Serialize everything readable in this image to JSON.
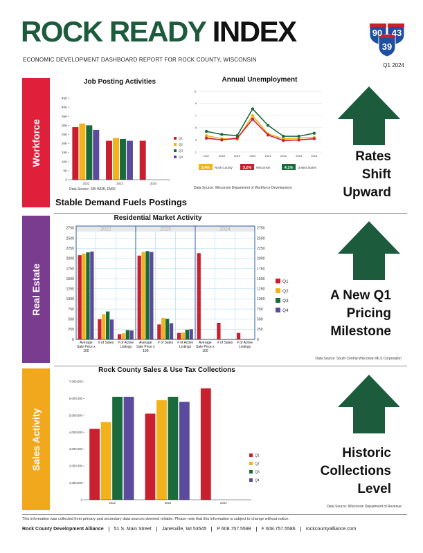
{
  "header": {
    "title_1": "ROCK READY",
    "title_2": "INDEX",
    "subtitle": "ECONOMIC DEVELOPMENT DASHBOARD REPORT FOR ROCK COUNTY, WISCONSIN",
    "period": "Q1 2024",
    "shields": [
      "90",
      "43",
      "39"
    ]
  },
  "sections": [
    {
      "label": "Workforce",
      "headline": [
        "Rates",
        "Shift",
        "Upward"
      ],
      "caption": "Stable Demand Fuels Postings",
      "color": "#e0203a"
    },
    {
      "label": "Real Estate",
      "headline": [
        "A New Q1",
        "Pricing",
        "Milestone"
      ],
      "color": "#7a3c8f"
    },
    {
      "label": "Sales Activity",
      "headline": [
        "Historic",
        "Collections",
        "Level"
      ],
      "color": "#f2a81d"
    }
  ],
  "chart_data": [
    {
      "type": "bar",
      "title": "Job Posting Activities",
      "categories": [
        "2022",
        "2023",
        "2024"
      ],
      "series": [
        {
          "name": "Q1",
          "color": "#c8202f",
          "values": [
            29000,
            21500,
            21500
          ]
        },
        {
          "name": "Q2",
          "color": "#f2b21b",
          "values": [
            31000,
            23000,
            null
          ]
        },
        {
          "name": "Q3",
          "color": "#1a6b3c",
          "values": [
            30000,
            22500,
            null
          ]
        },
        {
          "name": "Q4",
          "color": "#5b4a9e",
          "values": [
            27500,
            21500,
            null
          ]
        }
      ],
      "ylim": [
        0,
        45000
      ],
      "yticks": [
        0,
        {
          "value": 5000,
          "label": "5K"
        },
        {
          "value": 10000,
          "label": "10K"
        },
        {
          "value": 15000,
          "label": "15K"
        },
        {
          "value": 20000,
          "label": "20K"
        },
        {
          "value": 25000,
          "label": "25K"
        },
        {
          "value": 30000,
          "label": "30K"
        },
        {
          "value": 35000,
          "label": "35K"
        },
        {
          "value": 40000,
          "label": "40K"
        },
        {
          "value": 45000,
          "label": "45K"
        }
      ],
      "grid": false,
      "source": "Data Source: SW WDB, EMSI"
    },
    {
      "type": "line",
      "title": "Annual Unemployment",
      "categories": [
        "2017",
        "2018",
        "2019",
        "2020",
        "2021",
        "2022",
        "2023",
        "2024"
      ],
      "series": [
        {
          "name": "Rock County",
          "color": "#f2b21b",
          "latest_label": "3.4%",
          "values": [
            3.7,
            3.2,
            3.1,
            7.0,
            4.0,
            3.2,
            3.3,
            3.4
          ]
        },
        {
          "name": "Wisconsin",
          "color": "#c8202f",
          "latest_label": "3.2%",
          "values": [
            3.3,
            3.0,
            3.3,
            6.4,
            3.8,
            2.9,
            3.0,
            3.2
          ]
        },
        {
          "name": "United States",
          "color": "#1a6b3c",
          "latest_label": "4.1%",
          "values": [
            4.4,
            3.9,
            3.7,
            8.1,
            5.4,
            3.6,
            3.6,
            4.1
          ]
        }
      ],
      "ylim": [
        1,
        11
      ],
      "yticks": [
        1,
        3,
        5,
        7,
        9,
        11
      ],
      "grid": true,
      "source": "Data Source: Wisconsin Department of Workforce Development"
    },
    {
      "type": "bar",
      "title": "Residential Market Activity",
      "groups": [
        "2022",
        "2023",
        "2024"
      ],
      "categories": [
        "Average Sale Price x 100",
        "# of Sales",
        "# of Active Listings",
        "Average Sale Price x 100",
        "# of Sales",
        "# of Active Listings",
        "Average Sale Price x 100",
        "# of Sales",
        "# of Active Listings"
      ],
      "series": [
        {
          "name": "Q1",
          "color": "#c8202f",
          "values": [
            2080,
            500,
            130,
            2070,
            370,
            160,
            2130,
            410,
            160
          ]
        },
        {
          "name": "Q2",
          "color": "#f2b21b",
          "values": [
            2120,
            620,
            150,
            2160,
            530,
            170,
            null,
            null,
            null
          ]
        },
        {
          "name": "Q3",
          "color": "#1a6b3c",
          "values": [
            2150,
            690,
            230,
            2180,
            510,
            240,
            null,
            null,
            null
          ]
        },
        {
          "name": "Q4",
          "color": "#5b4a9e",
          "values": [
            2170,
            490,
            220,
            2160,
            400,
            250,
            null,
            null,
            null
          ]
        }
      ],
      "ylim": [
        0,
        2800
      ],
      "yticks": [
        0,
        250,
        500,
        750,
        1000,
        1250,
        1500,
        1750,
        2000,
        2250,
        2500,
        2750
      ],
      "grid": true,
      "source": "Data Source: South Central Wisconsin MLS Corporation"
    },
    {
      "type": "bar",
      "title": "Rock County Sales & Use Tax Collections",
      "categories": [
        "2022",
        "2023",
        "2024"
      ],
      "series": [
        {
          "name": "Q1",
          "color": "#c8202f",
          "values": [
            4200000,
            5100000,
            6600000
          ]
        },
        {
          "name": "Q2",
          "color": "#f2b21b",
          "values": [
            4600000,
            5900000,
            null
          ]
        },
        {
          "name": "Q3",
          "color": "#1a6b3c",
          "values": [
            6100000,
            6100000,
            null
          ]
        },
        {
          "name": "Q4",
          "color": "#5b4a9e",
          "values": [
            6100000,
            5800000,
            null
          ]
        }
      ],
      "ylim": [
        0,
        7000000
      ],
      "yticks": [
        0,
        {
          "value": 1000000,
          "label": "1,000,000"
        },
        {
          "value": 2000000,
          "label": "2,000,000"
        },
        {
          "value": 3000000,
          "label": "3,000,000"
        },
        {
          "value": 4000000,
          "label": "4,000,000"
        },
        {
          "value": 5000000,
          "label": "5,000,000"
        },
        {
          "value": 6000000,
          "label": "6,000,000"
        },
        {
          "value": 7000000,
          "label": "7,000,000"
        }
      ],
      "grid": false,
      "source": "Data Source: Wisconsin Department of Revenue"
    }
  ],
  "footer": {
    "disclaimer": "This information was collected from primary and secondary data sources deemed reliable. Please note that this information is subject to change without notice.",
    "organization": "Rock County Development Alliance",
    "address": "51 S. Main Street",
    "city": "Janesville, WI 53545",
    "phone": "P 608.757.5598",
    "fax": "F 608.757.5586",
    "website": "rockcountyalliance.com"
  }
}
